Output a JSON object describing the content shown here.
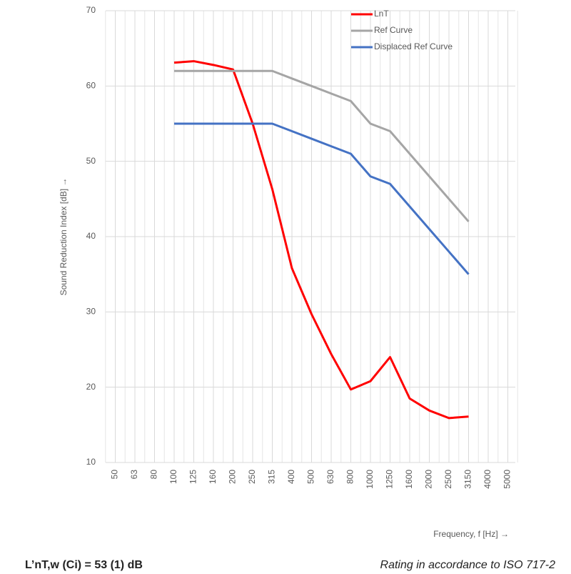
{
  "chart_data": {
    "type": "line",
    "y_label": "Sound Reduction Index [dB] →",
    "x_label": "Frequency, f [Hz] →",
    "categories": [
      "50",
      "63",
      "80",
      "100",
      "125",
      "160",
      "200",
      "250",
      "315",
      "400",
      "500",
      "630",
      "800",
      "1000",
      "1250",
      "1600",
      "2000",
      "2500",
      "3150",
      "4000",
      "5000"
    ],
    "series": [
      {
        "name": "LnT",
        "color": "#ff0000",
        "values": [
          null,
          null,
          null,
          63.1,
          63.3,
          62.8,
          62.2,
          55,
          46.3,
          35.8,
          29.7,
          24.4,
          19.7,
          20.8,
          24,
          18.5,
          16.9,
          15.9,
          16.1,
          null,
          null
        ]
      },
      {
        "name": "Ref Curve",
        "color": "#a5a5a5",
        "values": [
          null,
          null,
          null,
          62,
          62,
          62,
          62,
          62,
          62,
          61,
          60,
          59,
          58,
          55,
          54,
          51,
          48,
          45,
          42,
          null,
          null
        ]
      },
      {
        "name": "Displaced Ref Curve",
        "color": "#4472c4",
        "values": [
          null,
          null,
          null,
          55,
          55,
          55,
          55,
          55,
          55,
          54,
          53,
          52,
          51,
          48,
          47,
          44,
          41,
          38,
          35,
          null,
          null
        ]
      }
    ],
    "ylim": [
      10,
      70
    ],
    "yticks": [
      10,
      20,
      30,
      40,
      50,
      60,
      70
    ],
    "grid": true,
    "legend": "top-right"
  },
  "footer": {
    "left": "L’nT,w (Ci) = 53 (1) dB",
    "right": "Rating in accordance to ISO 717-2"
  }
}
